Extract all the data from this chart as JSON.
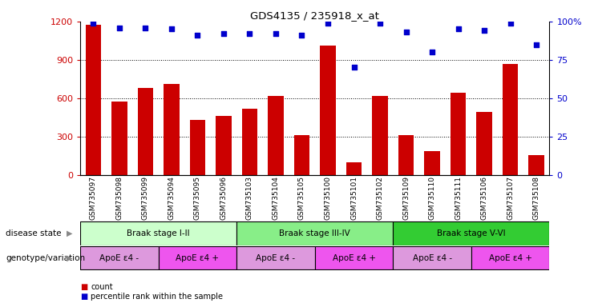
{
  "title": "GDS4135 / 235918_x_at",
  "samples": [
    "GSM735097",
    "GSM735098",
    "GSM735099",
    "GSM735094",
    "GSM735095",
    "GSM735096",
    "GSM735103",
    "GSM735104",
    "GSM735105",
    "GSM735100",
    "GSM735101",
    "GSM735102",
    "GSM735109",
    "GSM735110",
    "GSM735111",
    "GSM735106",
    "GSM735107",
    "GSM735108"
  ],
  "counts": [
    1175,
    575,
    680,
    710,
    430,
    460,
    520,
    620,
    310,
    1010,
    100,
    615,
    310,
    185,
    640,
    490,
    870,
    155
  ],
  "percentile_ranks": [
    99,
    96,
    96,
    95,
    91,
    92,
    92,
    92,
    91,
    99,
    70,
    99,
    93,
    80,
    95,
    94,
    99,
    85
  ],
  "bar_color": "#cc0000",
  "dot_color": "#0000cc",
  "ylim_left": [
    0,
    1200
  ],
  "ylim_right": [
    0,
    100
  ],
  "yticks_left": [
    0,
    300,
    600,
    900,
    1200
  ],
  "ytick_labels_left": [
    "0",
    "300",
    "600",
    "900",
    "1200"
  ],
  "yticks_right": [
    0,
    25,
    50,
    75,
    100
  ],
  "ytick_labels_right": [
    "0",
    "25",
    "50",
    "75",
    "100%"
  ],
  "disease_states": [
    {
      "label": "Braak stage I-II",
      "start": 0,
      "end": 6,
      "color": "#ccffcc"
    },
    {
      "label": "Braak stage III-IV",
      "start": 6,
      "end": 12,
      "color": "#88ee88"
    },
    {
      "label": "Braak stage V-VI",
      "start": 12,
      "end": 18,
      "color": "#33cc33"
    }
  ],
  "genotype_groups": [
    {
      "label": "ApoE ε4 -",
      "start": 0,
      "end": 3,
      "color": "#dd99dd"
    },
    {
      "label": "ApoE ε4 +",
      "start": 3,
      "end": 6,
      "color": "#ee55ee"
    },
    {
      "label": "ApoE ε4 -",
      "start": 6,
      "end": 9,
      "color": "#dd99dd"
    },
    {
      "label": "ApoE ε4 +",
      "start": 9,
      "end": 12,
      "color": "#ee55ee"
    },
    {
      "label": "ApoE ε4 -",
      "start": 12,
      "end": 15,
      "color": "#dd99dd"
    },
    {
      "label": "ApoE ε4 +",
      "start": 15,
      "end": 18,
      "color": "#ee55ee"
    }
  ],
  "disease_state_label": "disease state",
  "genotype_label": "genotype/variation",
  "legend_count_label": "count",
  "legend_pct_label": "percentile rank within the sample",
  "bg_color": "#ffffff"
}
